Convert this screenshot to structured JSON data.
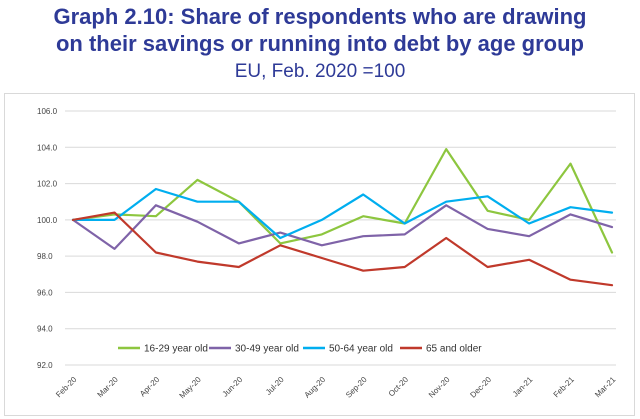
{
  "header": {
    "line1": "Graph 2.10: Share of respondents who are drawing",
    "line2": "on their savings or running into debt by age group",
    "subtitle": "EU, Feb. 2020 =100"
  },
  "chart_data": {
    "type": "line",
    "title": "Graph 2.10: Share of respondents who are drawing on their savings or running into debt by age group",
    "subtitle": "EU, Feb. 2020 =100",
    "xlabel": "",
    "ylabel": "",
    "ylim": [
      92.0,
      106.0
    ],
    "yticks": [
      "106.0",
      "104.0",
      "102.0",
      "100.0",
      "98.0",
      "96.0",
      "94.0",
      "92.0"
    ],
    "grid": true,
    "legend_position": "bottom-inside",
    "categories": [
      "Feb-20",
      "Mar-20",
      "Apr-20",
      "May-20",
      "Jun-20",
      "Jul-20",
      "Aug-20",
      "Sep-20",
      "Oct-20",
      "Nov-20",
      "Dec-20",
      "Jan-21",
      "Feb-21",
      "Mar-21"
    ],
    "series": [
      {
        "name": "16-29 year old",
        "color": "#8DC63F",
        "values": [
          100.0,
          100.3,
          100.2,
          102.2,
          101.0,
          98.7,
          99.2,
          100.2,
          99.8,
          103.9,
          100.5,
          100.0,
          103.1,
          98.2
        ]
      },
      {
        "name": "30-49 year old",
        "color": "#7F63A8",
        "values": [
          100.0,
          98.4,
          100.8,
          99.9,
          98.7,
          99.3,
          98.6,
          99.1,
          99.2,
          100.8,
          99.5,
          99.1,
          100.3,
          99.6
        ]
      },
      {
        "name": "50-64 year old",
        "color": "#00AEEF",
        "values": [
          100.0,
          100.0,
          101.7,
          101.0,
          101.0,
          99.0,
          100.0,
          101.4,
          99.8,
          101.0,
          101.3,
          99.8,
          100.7,
          100.4
        ]
      },
      {
        "name": "65 and older",
        "color": "#C0392B",
        "values": [
          100.0,
          100.4,
          98.2,
          97.7,
          97.4,
          98.6,
          97.9,
          97.2,
          97.4,
          99.0,
          97.4,
          97.8,
          96.7,
          96.4
        ]
      }
    ]
  }
}
